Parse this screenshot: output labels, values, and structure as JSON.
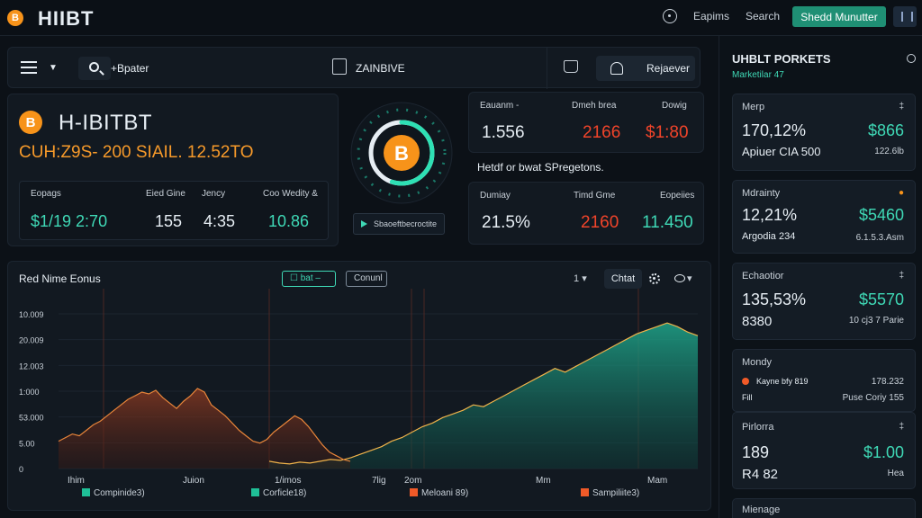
{
  "header": {
    "logo_glyph": "B",
    "title": "HIIBT",
    "links": [
      "Eapims",
      "Search"
    ],
    "cta_label": "Shedd Munutter"
  },
  "toolbar": {
    "nav_label": "+Bpater",
    "center_label": "ZAINBIVE",
    "receive_label": "Rejaever"
  },
  "overview": {
    "coin_glyph": "B",
    "name": "H-IBITBT",
    "subtitle": "CUH:Z9S- 200 SIAIL. 12.52TO",
    "stats": [
      {
        "label": "Eopags",
        "value": "$1/19 2:70",
        "color": "#3fd9b6"
      },
      {
        "label": "Eied Gine",
        "value": "155",
        "color": "#e6edf3"
      },
      {
        "label": "Jency",
        "value": "4:35",
        "color": "#e6edf3"
      },
      {
        "label": "Coo Wedity &",
        "value": "10.86",
        "color": "#3fd9b6"
      }
    ]
  },
  "gauge": {
    "glyph": "B",
    "level": 0.55,
    "stream_label": "Sbaoeftbecroctite"
  },
  "prices": {
    "top": [
      {
        "label": "Eauanm -",
        "value": "1.556",
        "color": "#e6edf3"
      },
      {
        "label": "Dmeh brea",
        "value": "2166",
        "color": "#f0442a"
      },
      {
        "label": "Dowig",
        "value": "$1:80",
        "color": "#f0442a"
      }
    ],
    "caption": "Hetdf or bwat SPregetons.",
    "bottom": [
      {
        "label": "Dumiay",
        "value": "21.5%",
        "color": "#e6edf3"
      },
      {
        "label": "Timd Gme",
        "value": "2160",
        "color": "#f0442a"
      },
      {
        "label": "Eopeiies",
        "value": "11.450",
        "color": "#3fd9b6"
      }
    ]
  },
  "chart_panel": {
    "title": "Red Nime Eonus",
    "chip_green": "☐ bat –",
    "chip_plain": "Conunl",
    "range_label": "1",
    "chart_button": "Chtat"
  },
  "chart_data": {
    "type": "area",
    "y_ticks": [
      "10.009",
      "20.009",
      "12.003",
      "1:000",
      "53.000",
      "5.00",
      "0"
    ],
    "x_ticks": [
      "Ihim",
      "Juion",
      "1/imos",
      "7lig",
      "2om",
      "Mm",
      "Mam"
    ],
    "legend": [
      {
        "label": "Compinide3)",
        "color": "#1fbf97"
      },
      {
        "label": "Corficle18)",
        "color": "#1fbf97"
      },
      {
        "label": "Meloani 89)",
        "color": "#f05a28"
      },
      {
        "label": "Sampiliite3)",
        "color": "#f05a28"
      }
    ],
    "series": [
      {
        "color": "#e8853a",
        "values": [
          30,
          34,
          38,
          36,
          42,
          48,
          52,
          58,
          64,
          70,
          76,
          80,
          84,
          82,
          86,
          78,
          72,
          66,
          74,
          80,
          88,
          84,
          70,
          64,
          58,
          50,
          42,
          36,
          30,
          28,
          32,
          40,
          46,
          52,
          58,
          54,
          46,
          36,
          26,
          18,
          14,
          10,
          8
        ]
      },
      {
        "color": "#1fa58a",
        "values": [
          8,
          6,
          5,
          7,
          6,
          8,
          10,
          9,
          12,
          16,
          20,
          24,
          30,
          34,
          40,
          46,
          50,
          56,
          60,
          64,
          70,
          68,
          74,
          80,
          86,
          92,
          98,
          104,
          110,
          106,
          112,
          118,
          124,
          130,
          136,
          142,
          148,
          152,
          156,
          160,
          156,
          150,
          146
        ]
      }
    ]
  },
  "sidebar": {
    "title": "UHBLT PORKETS",
    "subtitle": "Marketilar 47",
    "cards": [
      {
        "label": "Merp",
        "mark": "‡",
        "v1": "170,12%",
        "v2": "$866",
        "s1": "Apiuer CIA 500",
        "s2": "122.6lb"
      },
      {
        "label": "Mdrainty",
        "mark": "●",
        "v1": "12,21%",
        "v2": "$5460",
        "s1": "Argodia 234",
        "s2": "6.1.5.3.Asm"
      },
      {
        "label": "Echaotior",
        "mark": "‡",
        "v1": "135,53%",
        "v2": "$5570",
        "s1": "8380",
        "s2": "10 cj3 7 Parie"
      },
      {
        "label": "Mondy",
        "rows": [
          [
            "Kayne bfy 819",
            "178.232"
          ],
          [
            "Fill",
            "Puse Coriy 155"
          ]
        ]
      },
      {
        "label": "Pirlorra",
        "mark": "‡",
        "v1": "189",
        "v2": "$1.00",
        "s1": "R4 82",
        "s2": "Hea"
      },
      {
        "label": "Mienage"
      }
    ]
  }
}
